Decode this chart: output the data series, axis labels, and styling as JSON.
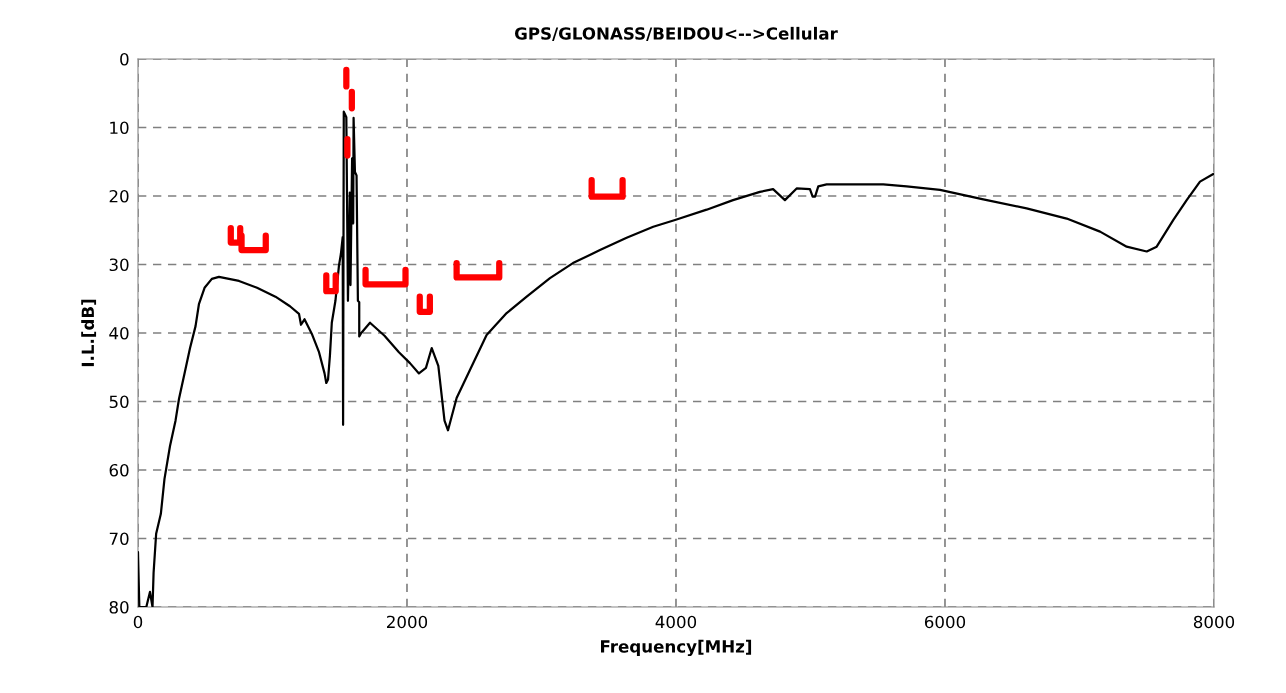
{
  "chart_data": {
    "type": "line",
    "title": "GPS/GLONASS/BEIDOU<-->Cellular",
    "xlabel": "Frequency[MHz]",
    "ylabel": "I.L.[dB]",
    "xlim": [
      0,
      8000
    ],
    "xticks": [
      0,
      2000,
      4000,
      6000,
      8000
    ],
    "ylim": [
      80,
      0
    ],
    "yticks": [
      0,
      10,
      20,
      30,
      40,
      50,
      60,
      70,
      80
    ],
    "grid": true,
    "marker": "none",
    "series": [
      {
        "color": "#000000",
        "line_style": "solid",
        "x": [
          0,
          10,
          62,
          89,
          108,
          116,
          135,
          170,
          197,
          238,
          279,
          305,
          346,
          387,
          428,
          453,
          495,
          549,
          602,
          751,
          885,
          1022,
          1130,
          1197,
          1212,
          1238,
          1292,
          1346,
          1387,
          1400,
          1413,
          1427,
          1441,
          1468,
          1494,
          1509,
          1522,
          1525,
          1530,
          1549,
          1561,
          1575,
          1580,
          1592,
          1600,
          1603,
          1613,
          1625,
          1635,
          1645,
          1645,
          1660,
          1725,
          1833,
          1940,
          2022,
          2089,
          2141,
          2184,
          2233,
          2279,
          2305,
          2369,
          2468,
          2592,
          2741,
          2890,
          3063,
          3234,
          3435,
          3633,
          3831,
          3993,
          4228,
          4424,
          4624,
          4722,
          4810,
          4897,
          4996,
          5016,
          5034,
          5058,
          5120,
          5541,
          5715,
          5963,
          6285,
          6607,
          6905,
          7153,
          7351,
          7500,
          7574,
          7698,
          7797,
          7896,
          7995
        ],
        "values": [
          72,
          80,
          80,
          77.8,
          80,
          75,
          69.3,
          66.4,
          61.3,
          56.5,
          52.8,
          49.6,
          45.9,
          42.2,
          39,
          35.8,
          33.4,
          32.1,
          31.8,
          32.4,
          33.4,
          34.7,
          36.1,
          37.2,
          38.8,
          38,
          40.1,
          42.8,
          45.9,
          47.3,
          46.8,
          43.3,
          38.5,
          35.3,
          30.2,
          28.4,
          26,
          53.4,
          7.7,
          8.5,
          35.3,
          19.5,
          33,
          14.5,
          24,
          8.6,
          16.5,
          17,
          35.3,
          35.5,
          40.5,
          40,
          38.5,
          40.4,
          42.8,
          44.4,
          45.9,
          45.1,
          42.2,
          44.8,
          52.8,
          54.2,
          49.5,
          45.4,
          40.3,
          37.1,
          34.7,
          32,
          29.8,
          27.9,
          26.1,
          24.5,
          23.5,
          22,
          20.6,
          19.4,
          19,
          20.6,
          18.9,
          19,
          20.1,
          20.1,
          18.6,
          18.3,
          18.3,
          18.6,
          19.1,
          20.5,
          21.8,
          23.3,
          25.2,
          27.4,
          28.1,
          27.4,
          23.5,
          20.6,
          17.9,
          16.8
        ]
      },
      {
        "color": "#ff0000",
        "line_style": "solid",
        "x": [
          690,
          690,
          760,
          760,
          null,
          770,
          770,
          950,
          950,
          null,
          1400,
          1400,
          1470,
          1470,
          null,
          1549,
          1549,
          null,
          1590,
          1590,
          null,
          1557,
          1557,
          null,
          1692,
          1692,
          1989,
          1989,
          null,
          2095,
          2095,
          2170,
          2170,
          null,
          2369,
          2369,
          2686,
          2686,
          null,
          3373,
          3373,
          3603,
          3603
        ],
        "values": [
          24.7,
          26.8,
          26.8,
          24.7,
          null,
          25.8,
          27.9,
          27.9,
          25.8,
          null,
          31.6,
          33.9,
          33.9,
          31.6,
          null,
          1.6,
          4.0,
          null,
          4.8,
          7.2,
          null,
          11.7,
          14.1,
          null,
          30.8,
          32.9,
          32.9,
          30.8,
          null,
          34.7,
          36.9,
          36.9,
          34.7,
          null,
          29.8,
          31.9,
          31.9,
          29.8,
          null,
          17.7,
          20.1,
          20.1,
          17.7
        ]
      }
    ]
  }
}
